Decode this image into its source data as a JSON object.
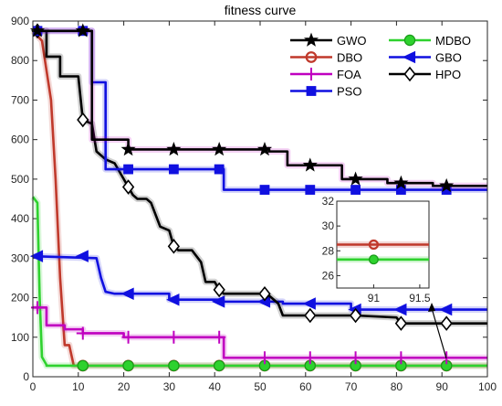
{
  "chart_data": {
    "type": "line",
    "title": "fitness curve",
    "xlabel": "",
    "ylabel": "",
    "xlim": [
      0,
      100
    ],
    "ylim": [
      0,
      900
    ],
    "xticks": [
      0,
      10,
      20,
      30,
      40,
      50,
      60,
      70,
      80,
      90,
      100
    ],
    "yticks": [
      0,
      100,
      200,
      300,
      400,
      500,
      600,
      700,
      800,
      900
    ],
    "grid": false,
    "legend": {
      "placement": "top-right",
      "columns": 2,
      "order": [
        "GWO",
        "MDBO",
        "DBO",
        "GBO",
        "FOA",
        "HPO",
        "PSO"
      ]
    },
    "series": [
      {
        "name": "GWO",
        "color": "#000000",
        "marker": "star",
        "glow": "#c000c0",
        "x": [
          0,
          13,
          13,
          21,
          21,
          40,
          40,
          52,
          52,
          56,
          56,
          68,
          68,
          70,
          70,
          78,
          78,
          88,
          88,
          100
        ],
        "y": [
          875,
          875,
          600,
          600,
          575,
          575,
          575,
          575,
          570,
          570,
          535,
          535,
          500,
          500,
          500,
          500,
          490,
          490,
          483,
          483
        ],
        "marker_x": [
          1,
          11,
          21,
          31,
          41,
          51,
          61,
          71,
          81,
          91
        ]
      },
      {
        "name": "MDBO",
        "color": "#2ed22e",
        "marker": "circle",
        "x": [
          0,
          1,
          1.5,
          2,
          3,
          3,
          100
        ],
        "y": [
          455,
          440,
          200,
          50,
          30,
          28,
          28
        ],
        "marker_x": [
          11,
          21,
          31,
          41,
          51,
          61,
          71,
          81,
          91
        ]
      },
      {
        "name": "DBO",
        "color": "#c0392b",
        "marker": "circle-open",
        "x": [
          0,
          2,
          4,
          5,
          6,
          7,
          8,
          9,
          100
        ],
        "y": [
          875,
          850,
          700,
          500,
          250,
          80,
          80,
          28,
          28
        ],
        "marker_x": [
          11,
          21,
          31,
          41,
          51,
          61,
          71,
          81,
          91
        ]
      },
      {
        "name": "GBO",
        "color": "#1010e0",
        "marker": "triangle-left",
        "x": [
          0,
          14,
          15,
          16,
          18,
          18,
          30,
          30,
          41,
          41,
          55,
          55,
          70,
          70,
          100
        ],
        "y": [
          305,
          300,
          250,
          215,
          210,
          210,
          210,
          195,
          195,
          190,
          190,
          185,
          185,
          170,
          170
        ],
        "marker_x": [
          1,
          11,
          21,
          31,
          41,
          51,
          61,
          71,
          81,
          91
        ]
      },
      {
        "name": "FOA",
        "color": "#c000c0",
        "marker": "plus",
        "x": [
          0,
          3,
          3,
          7,
          7,
          11,
          11,
          20,
          20,
          42,
          42,
          100
        ],
        "y": [
          175,
          175,
          130,
          130,
          120,
          120,
          110,
          110,
          100,
          100,
          48,
          48
        ],
        "marker_x": [
          1,
          11,
          21,
          31,
          41,
          51,
          61,
          71,
          81,
          91
        ]
      },
      {
        "name": "HPO",
        "color": "#000000",
        "marker": "diamond",
        "x": [
          0,
          3,
          3,
          6,
          6,
          10,
          11,
          13,
          14,
          16,
          18,
          20,
          21,
          22,
          23,
          25,
          26,
          28,
          30,
          31,
          32,
          35,
          37,
          38,
          40,
          41,
          42,
          51,
          52,
          54,
          55,
          60,
          61,
          70,
          71,
          80,
          81,
          88,
          89,
          100
        ],
        "y": [
          875,
          875,
          810,
          810,
          760,
          760,
          650,
          640,
          570,
          550,
          540,
          500,
          480,
          460,
          450,
          450,
          440,
          380,
          370,
          330,
          320,
          320,
          290,
          240,
          240,
          220,
          210,
          210,
          205,
          185,
          155,
          155,
          155,
          155,
          155,
          150,
          135,
          135,
          135,
          135
        ],
        "marker_x": [
          1,
          11,
          21,
          31,
          41,
          51,
          61,
          71,
          81,
          91
        ]
      },
      {
        "name": "PSO",
        "color": "#1010e0",
        "marker": "square",
        "x": [
          0,
          13,
          13,
          16,
          16,
          42,
          42,
          100
        ],
        "y": [
          875,
          875,
          745,
          745,
          525,
          525,
          473,
          473
        ],
        "marker_x": [
          1,
          11,
          21,
          31,
          41,
          51,
          61,
          71,
          81,
          91
        ]
      }
    ],
    "inset": {
      "xlim": [
        90.6,
        91.6
      ],
      "ylim": [
        25,
        32
      ],
      "xticks": [
        91,
        91.5
      ],
      "yticks": [
        26,
        28,
        30,
        32
      ],
      "series": [
        {
          "name": "DBO",
          "color": "#c0392b",
          "y": 28.5,
          "marker": "circle-open",
          "marker_x": 91
        },
        {
          "name": "MDBO",
          "color": "#2ed22e",
          "y": 27.3,
          "marker": "circle",
          "marker_x": 91
        }
      ],
      "arrow": {
        "from": [
          91.5,
          70
        ],
        "to": [
          87,
          185
        ]
      }
    }
  }
}
